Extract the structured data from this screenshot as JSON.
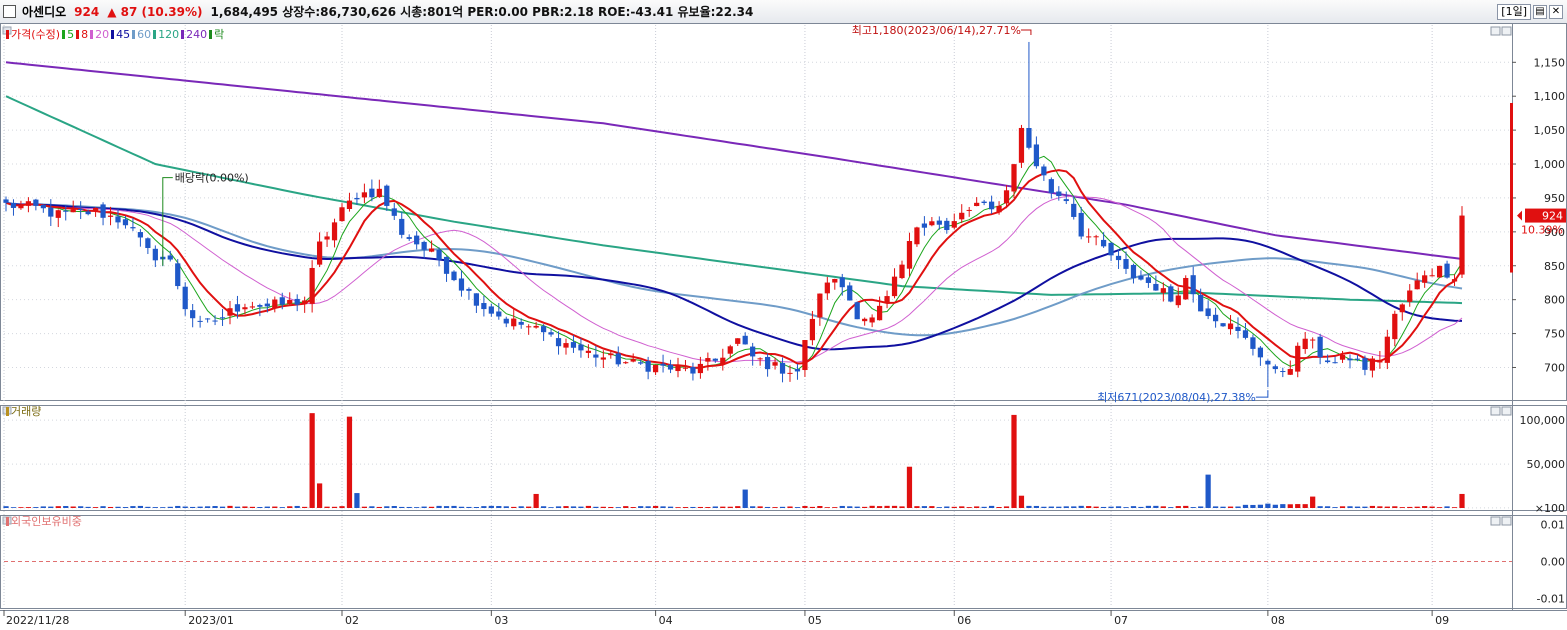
{
  "header": {
    "name": "아센디오",
    "price": "924",
    "change": "▲ 87 (10.39%)",
    "stats": "1,684,495  상장수:86,730,626 시총:801억 PER:0.00 PBR:2.18 ROE:-43.41 유보율:22.34",
    "period_label": "[1일]"
  },
  "legend": [
    {
      "label": "가격(수정)",
      "color": "#e01010"
    },
    {
      "label": "5",
      "color": "#1ca51c"
    },
    {
      "label": "8",
      "color": "#e01010"
    },
    {
      "label": "20",
      "color": "#d060d0"
    },
    {
      "label": "45",
      "color": "#1010a0"
    },
    {
      "label": "60",
      "color": "#6f9cc8"
    },
    {
      "label": "120",
      "color": "#2aa585"
    },
    {
      "label": "240",
      "color": "#7a28b8"
    },
    {
      "label": "락",
      "color": "#1c8a1c"
    }
  ],
  "panels": {
    "volume_label": "거래량",
    "foreign_label": "외국인보유비중"
  },
  "annotations": {
    "high": "최고1,180(2023/06/14),27.71%",
    "low": "최저671(2023/08/04),27.38%",
    "dividend": "배당락(0.00%)"
  },
  "current_price_tag": {
    "price": "924",
    "change": "10.39%"
  },
  "chart_data": {
    "type": "candlestick",
    "price_axis": {
      "ticks": [
        700,
        750,
        800,
        850,
        900,
        950,
        1000,
        1050,
        1100,
        1150
      ],
      "tick_labels": [
        "700",
        "750",
        "800",
        "850",
        "900",
        "950",
        "1,000",
        "1,050",
        "1,100",
        "1,150"
      ],
      "range": [
        655,
        1205
      ]
    },
    "volume_axis": {
      "ticks": [
        100,
        50000,
        100000
      ],
      "tick_labels": [
        "×100",
        "50,000",
        "100,000"
      ],
      "range": [
        0,
        115000
      ]
    },
    "foreign_axis": {
      "ticks": [
        0.01,
        0.0,
        -0.01
      ],
      "tick_labels": [
        "0.01",
        "0.00",
        "-0.01"
      ],
      "range": [
        -0.012,
        0.012
      ]
    },
    "x_labels": [
      "2022/11/28",
      "2023/01",
      "02",
      "03",
      "04",
      "05",
      "06",
      "07",
      "08",
      "09"
    ],
    "x_label_positions": [
      0,
      24,
      45,
      65,
      87,
      107,
      127,
      148,
      169,
      191
    ],
    "n_bars": 196,
    "close_anchors": [
      [
        0,
        940
      ],
      [
        4,
        935
      ],
      [
        7,
        925
      ],
      [
        12,
        930
      ],
      [
        16,
        915
      ],
      [
        19,
        870
      ],
      [
        22,
        855
      ],
      [
        24,
        790
      ],
      [
        26,
        760
      ],
      [
        29,
        775
      ],
      [
        32,
        795
      ],
      [
        35,
        790
      ],
      [
        38,
        795
      ],
      [
        40,
        800
      ],
      [
        42,
        880
      ],
      [
        45,
        930
      ],
      [
        47,
        955
      ],
      [
        50,
        960
      ],
      [
        53,
        900
      ],
      [
        56,
        875
      ],
      [
        58,
        860
      ],
      [
        61,
        820
      ],
      [
        64,
        790
      ],
      [
        67,
        770
      ],
      [
        70,
        760
      ],
      [
        73,
        745
      ],
      [
        77,
        725
      ],
      [
        80,
        715
      ],
      [
        84,
        705
      ],
      [
        88,
        700
      ],
      [
        92,
        695
      ],
      [
        95,
        710
      ],
      [
        98,
        740
      ],
      [
        100,
        715
      ],
      [
        103,
        700
      ],
      [
        106,
        695
      ],
      [
        108,
        775
      ],
      [
        110,
        830
      ],
      [
        112,
        820
      ],
      [
        114,
        780
      ],
      [
        116,
        770
      ],
      [
        118,
        800
      ],
      [
        120,
        850
      ],
      [
        122,
        910
      ],
      [
        124,
        920
      ],
      [
        126,
        900
      ],
      [
        128,
        925
      ],
      [
        130,
        940
      ],
      [
        132,
        930
      ],
      [
        134,
        960
      ],
      [
        136,
        1050
      ],
      [
        138,
        1000
      ],
      [
        140,
        960
      ],
      [
        142,
        950
      ],
      [
        144,
        900
      ],
      [
        146,
        885
      ],
      [
        148,
        865
      ],
      [
        150,
        840
      ],
      [
        152,
        830
      ],
      [
        154,
        820
      ],
      [
        156,
        800
      ],
      [
        158,
        830
      ],
      [
        160,
        790
      ],
      [
        162,
        775
      ],
      [
        164,
        760
      ],
      [
        166,
        740
      ],
      [
        168,
        720
      ],
      [
        170,
        690
      ],
      [
        172,
        705
      ],
      [
        174,
        745
      ],
      [
        176,
        720
      ],
      [
        178,
        705
      ],
      [
        180,
        715
      ],
      [
        182,
        700
      ],
      [
        184,
        715
      ],
      [
        186,
        775
      ],
      [
        188,
        810
      ],
      [
        190,
        840
      ],
      [
        192,
        845
      ],
      [
        194,
        837
      ],
      [
        195,
        924
      ]
    ],
    "candles_highlight": [
      {
        "x": 137,
        "high": 1180,
        "note": "high"
      },
      {
        "x": 169,
        "low": 671,
        "note": "low"
      }
    ],
    "volume_spikes": [
      {
        "x": 41,
        "v": 108000
      },
      {
        "x": 42,
        "v": 28000
      },
      {
        "x": 46,
        "v": 104000
      },
      {
        "x": 47,
        "v": 17000
      },
      {
        "x": 71,
        "v": 16000
      },
      {
        "x": 99,
        "v": 21000
      },
      {
        "x": 121,
        "v": 47000
      },
      {
        "x": 135,
        "v": 106000
      },
      {
        "x": 136,
        "v": 14000
      },
      {
        "x": 161,
        "v": 38000
      },
      {
        "x": 175,
        "v": 13000
      },
      {
        "x": 195,
        "v": 16000
      }
    ],
    "foreign_ratio": 0.0,
    "series": [
      {
        "name": "5",
        "period": 5
      },
      {
        "name": "8",
        "period": 8
      },
      {
        "name": "20",
        "period": 20
      },
      {
        "name": "45",
        "period": 45
      },
      {
        "name": "60",
        "period": 60
      },
      {
        "name": "120",
        "period": 120
      },
      {
        "name": "240",
        "period": 240
      }
    ],
    "long_ma_anchors": {
      "240": [
        [
          0,
          1150
        ],
        [
          40,
          1105
        ],
        [
          80,
          1060
        ],
        [
          110,
          1010
        ],
        [
          130,
          975
        ],
        [
          150,
          940
        ],
        [
          170,
          895
        ],
        [
          195,
          860
        ]
      ],
      "120": [
        [
          0,
          1100
        ],
        [
          20,
          1000
        ],
        [
          40,
          955
        ],
        [
          60,
          915
        ],
        [
          80,
          880
        ],
        [
          100,
          850
        ],
        [
          120,
          820
        ],
        [
          140,
          807
        ],
        [
          160,
          810
        ],
        [
          180,
          800
        ],
        [
          195,
          795
        ]
      ]
    }
  }
}
